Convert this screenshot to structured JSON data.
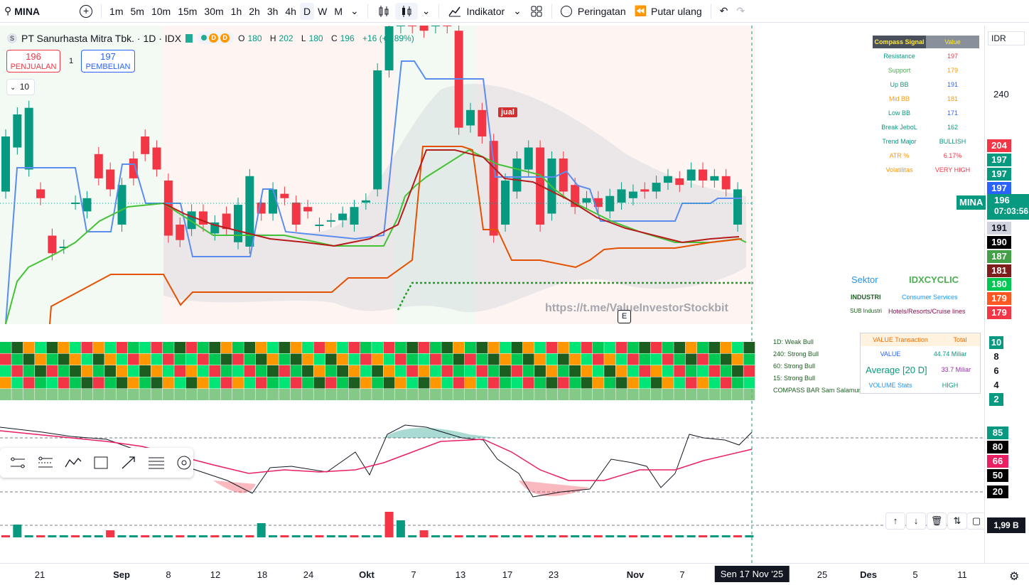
{
  "toolbar": {
    "symbol": "MINA",
    "intervals": [
      "1m",
      "5m",
      "10m",
      "15m",
      "30m",
      "1h",
      "2h",
      "3h",
      "4h",
      "D",
      "W",
      "M"
    ],
    "active_interval": "D",
    "indicators_label": "Indikator",
    "alerts_label": "Peringatan",
    "replay_label": "Putar ulang"
  },
  "legend": {
    "title": "PT Sanurhasta Mitra Tbk. · 1D · IDX",
    "o_label": "O",
    "o": "180",
    "h_label": "H",
    "h": "202",
    "l_label": "L",
    "l": "180",
    "c_label": "C",
    "c": "196",
    "change": "+16 (+8,89%)",
    "pill_letters": [
      "D",
      "D"
    ]
  },
  "trade": {
    "sell_price": "196",
    "sell_label": "PENJUALAN",
    "spread": "1",
    "buy_price": "197",
    "buy_label": "PEMBELIAN",
    "qty": "10"
  },
  "compass": {
    "header": [
      "Compass Signal",
      "Value"
    ],
    "rows": [
      {
        "label": "Resistance",
        "value": "197",
        "lc": "#089981",
        "vc": "#f23645"
      },
      {
        "label": "Support",
        "value": "179",
        "lc": "#4caf50",
        "vc": "#ff9800"
      },
      {
        "label": "Up BB",
        "value": "191",
        "lc": "#089981",
        "vc": "#2962ff"
      },
      {
        "label": "Mid BB",
        "value": "181",
        "lc": "#ff9800",
        "vc": "#ff9800"
      },
      {
        "label": "Low BB",
        "value": "171",
        "lc": "#089981",
        "vc": "#2962ff"
      },
      {
        "label": "Break JeboL",
        "value": "162",
        "lc": "#089981",
        "vc": "#089981"
      },
      {
        "label": "Trend Major",
        "value": "BULLISH",
        "lc": "#089981",
        "vc": "#089981"
      },
      {
        "label": "ATR %",
        "value": "6.17%",
        "lc": "#ff9800",
        "vc": "#f23645"
      },
      {
        "label": "Volatilitas",
        "value": "VERY HIGH",
        "lc": "#ff9800",
        "vc": "#f23645"
      }
    ]
  },
  "sector": {
    "sektor_label": "Sektor",
    "sektor_value": "IDXCYCLIC",
    "industri_label": "INDUSTRI",
    "industri_value": "Consumer Services",
    "sub_label": "SUB Industri",
    "sub_value": "Hotels/Resorts/Cruise lines"
  },
  "watermark": "https://t.me/ValueInvestorStockbit",
  "signal_jual": "jual",
  "earnings_marker": "E",
  "compass_bar": {
    "labels": [
      "1D: Weak Bull",
      "240: Strong Bull",
      "60: Strong Bull",
      "15: Strong Bull",
      "COMPASS BAR Sam Salamun"
    ]
  },
  "value_table": {
    "header": [
      "VALUE Transaction",
      "Total"
    ],
    "rows": [
      {
        "label": "VALUE",
        "value": "44.74 Miliar"
      },
      {
        "label": "Average [20 D]",
        "value": "33.7 Miliar"
      },
      {
        "label": "VOLUME Stats",
        "value": "HIGH"
      }
    ]
  },
  "price_scale": {
    "currency": "IDR",
    "tick": "240",
    "symbol_tag": "MINA",
    "last": "196",
    "countdown": "07:03:56",
    "badges": [
      {
        "text": "204",
        "bg": "#f23645",
        "fg": "#fff"
      },
      {
        "text": "197",
        "bg": "#089981",
        "fg": "#fff"
      },
      {
        "text": "197",
        "bg": "#089981",
        "fg": "#fff"
      },
      {
        "text": "197",
        "bg": "#2962ff",
        "fg": "#fff"
      },
      {
        "text": "191",
        "bg": "#d1d4dc",
        "fg": "#131722"
      },
      {
        "text": "190",
        "bg": "#000000",
        "fg": "#fff"
      },
      {
        "text": "187",
        "bg": "#43a047",
        "fg": "#fff"
      },
      {
        "text": "181",
        "bg": "#7f1d1d",
        "fg": "#fff"
      },
      {
        "text": "180",
        "bg": "#00c853",
        "fg": "#fff"
      },
      {
        "text": "179",
        "bg": "#ff5722",
        "fg": "#fff"
      },
      {
        "text": "179",
        "bg": "#f23645",
        "fg": "#fff"
      }
    ],
    "compass_scale": [
      "10",
      "8",
      "6",
      "4",
      "2"
    ],
    "osc": [
      {
        "text": "85",
        "bg": "#089981",
        "fg": "#fff"
      },
      {
        "text": "80",
        "bg": "#000000",
        "fg": "#fff"
      },
      {
        "text": "66",
        "bg": "#e91e63",
        "fg": "#fff"
      },
      {
        "text": "50",
        "bg": "#000000",
        "fg": "#fff"
      },
      {
        "text": "20",
        "bg": "#000000",
        "fg": "#fff"
      }
    ],
    "volume": "1,99 B"
  },
  "xaxis": [
    "21",
    "Sep",
    "8",
    "12",
    "18",
    "24",
    "Okt",
    "7",
    "13",
    "17",
    "23",
    "Nov",
    "7",
    "Sen 17 Nov '25",
    "25",
    "Des",
    "5",
    "11"
  ],
  "colors": {
    "up": "#089981",
    "down": "#f23645",
    "accent": "#2962ff"
  }
}
